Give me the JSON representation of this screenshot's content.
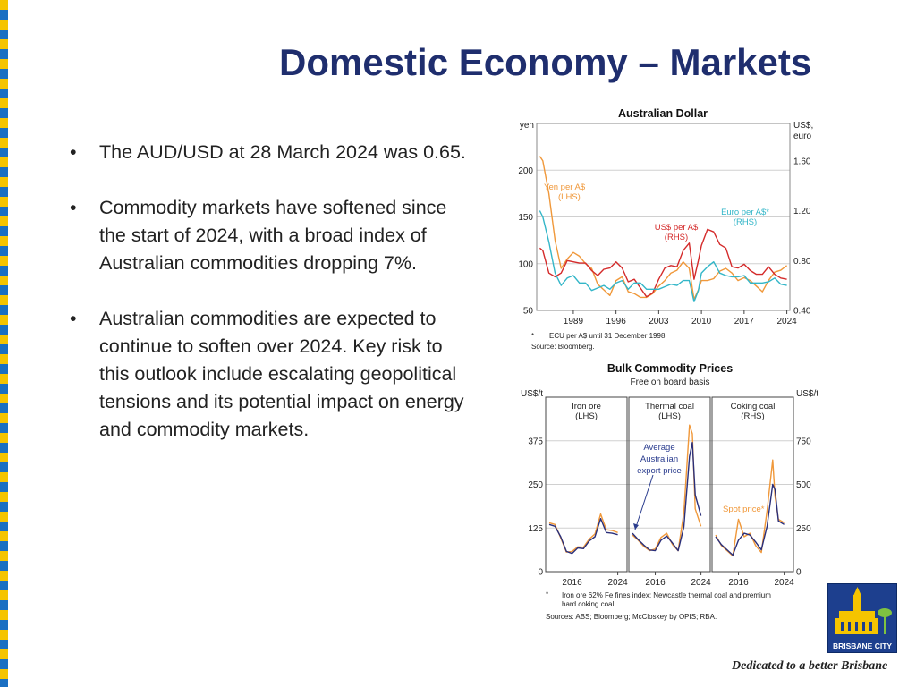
{
  "slide": {
    "title": "Domestic Economy – Markets",
    "bullets": [
      "The AUD/USD at 28 March 2024 was 0.65.",
      "Commodity markets have softened since the start of 2024, with a broad index of Australian commodities dropping 7%.",
      "Australian commodities are expected to continue to soften over 2024. Key risk to this outlook include escalating geopolitical tensions and its potential impact on energy and commodity markets."
    ],
    "bullet_symbol": "•",
    "tagline": "Dedicated to a better Brisbane",
    "logo": {
      "text": "BRISBANE CITY",
      "icon": "brisbane-city-hall-logo",
      "color": "#1d3f8e"
    },
    "edge_colors": [
      "#f5c400",
      "#1a6fc2"
    ],
    "title_color": "#1f2e6e"
  },
  "chart_data": [
    {
      "type": "line",
      "title": "Australian Dollar",
      "left_unit": "yen",
      "right_unit_lines": [
        "US$,",
        "euro"
      ],
      "x_ticks": [
        "1989",
        "1996",
        "2003",
        "2010",
        "2017",
        "2024"
      ],
      "xlim": [
        1983,
        2024.5
      ],
      "left_ticks": [
        "50",
        "100",
        "150",
        "200"
      ],
      "left_ylim": [
        50,
        250
      ],
      "right_ticks": [
        "0.40",
        "0.80",
        "1.20",
        "1.60"
      ],
      "right_ylim": [
        0.4,
        1.9
      ],
      "grid": true,
      "series": [
        {
          "name": "Yen per A$",
          "axis": "left",
          "color": "#f0983a",
          "labels": [
            "Yen per A$",
            "(LHS)"
          ],
          "x": [
            1983.5,
            1984,
            1985,
            1986,
            1987,
            1988,
            1989,
            1990,
            1991,
            1992,
            1993,
            1994,
            1995,
            1996,
            1997,
            1998,
            1999,
            2000,
            2001,
            2002,
            2003,
            2004,
            2005,
            2006,
            2007,
            2008,
            2008.8,
            2009.5,
            2010,
            2011,
            2012,
            2013,
            2014,
            2015,
            2016,
            2017,
            2018,
            2019,
            2020,
            2021,
            2022,
            2023,
            2024
          ],
          "values": [
            215,
            210,
            175,
            125,
            95,
            105,
            112,
            108,
            100,
            95,
            78,
            72,
            66,
            82,
            86,
            70,
            68,
            64,
            64,
            68,
            76,
            82,
            90,
            93,
            102,
            95,
            62,
            72,
            82,
            82,
            84,
            92,
            95,
            90,
            82,
            85,
            82,
            76,
            70,
            82,
            91,
            93,
            98
          ]
        },
        {
          "name": "US$ per A$",
          "axis": "right",
          "color": "#d42a2a",
          "labels": [
            "US$ per A$",
            "(RHS)"
          ],
          "x": [
            1983.5,
            1984,
            1985,
            1986,
            1987,
            1988,
            1989,
            1990,
            1991,
            1992,
            1993,
            1994,
            1995,
            1996,
            1997,
            1998,
            1999,
            2000,
            2001,
            2002,
            2003,
            2004,
            2005,
            2006,
            2007,
            2008,
            2008.8,
            2009.5,
            2010,
            2011,
            2012,
            2013,
            2014,
            2015,
            2016,
            2017,
            2018,
            2019,
            2020,
            2021,
            2022,
            2023,
            2024
          ],
          "values": [
            0.9,
            0.88,
            0.7,
            0.67,
            0.7,
            0.8,
            0.79,
            0.78,
            0.78,
            0.72,
            0.68,
            0.73,
            0.74,
            0.79,
            0.74,
            0.63,
            0.65,
            0.58,
            0.51,
            0.54,
            0.65,
            0.74,
            0.76,
            0.75,
            0.88,
            0.94,
            0.65,
            0.8,
            0.92,
            1.05,
            1.03,
            0.93,
            0.9,
            0.75,
            0.74,
            0.77,
            0.72,
            0.69,
            0.69,
            0.75,
            0.69,
            0.66,
            0.65
          ]
        },
        {
          "name": "Euro per A$*",
          "axis": "right",
          "color": "#33b6c8",
          "labels": [
            "Euro per A$*",
            "(RHS)"
          ],
          "x": [
            1983.5,
            1984,
            1985,
            1986,
            1987,
            1988,
            1989,
            1990,
            1991,
            1992,
            1993,
            1994,
            1995,
            1996,
            1997,
            1998,
            1999,
            2000,
            2001,
            2002,
            2003,
            2004,
            2005,
            2006,
            2007,
            2008,
            2008.8,
            2009.5,
            2010,
            2011,
            2012,
            2013,
            2014,
            2015,
            2016,
            2017,
            2018,
            2019,
            2020,
            2021,
            2022,
            2023,
            2024
          ],
          "values": [
            1.2,
            1.15,
            0.95,
            0.7,
            0.6,
            0.66,
            0.68,
            0.62,
            0.62,
            0.56,
            0.58,
            0.6,
            0.57,
            0.62,
            0.64,
            0.57,
            0.62,
            0.62,
            0.57,
            0.57,
            0.57,
            0.59,
            0.61,
            0.6,
            0.64,
            0.64,
            0.47,
            0.56,
            0.7,
            0.75,
            0.79,
            0.7,
            0.68,
            0.67,
            0.67,
            0.68,
            0.62,
            0.62,
            0.62,
            0.63,
            0.66,
            0.61,
            0.6
          ]
        }
      ],
      "footnote_mark": "*",
      "footnote": "ECU per A$ until 31 December 1998.",
      "source": "Source:   Bloomberg."
    },
    {
      "type": "line",
      "title": "Bulk Commodity Prices",
      "subtitle": "Free on board basis",
      "left_unit": "US$/t",
      "right_unit": "US$/t",
      "left_ticks": [
        "0",
        "125",
        "250",
        "375"
      ],
      "left_ylim": [
        0,
        500
      ],
      "right_ticks": [
        "0",
        "250",
        "500",
        "750"
      ],
      "right_ylim": [
        0,
        1000
      ],
      "grid": true,
      "panels": [
        {
          "title_lines": [
            "Iron ore",
            "(LHS)"
          ],
          "x_ticks": [
            "2016",
            "2024"
          ],
          "xlim": [
            2012,
            2025
          ],
          "axis": "left",
          "x": [
            2012,
            2013,
            2014,
            2015,
            2016,
            2017,
            2018,
            2019,
            2020,
            2021,
            2022,
            2023,
            2024
          ],
          "spot": [
            140,
            135,
            97,
            56,
            58,
            71,
            70,
            93,
            108,
            165,
            120,
            118,
            112
          ],
          "average": [
            135,
            130,
            100,
            58,
            52,
            68,
            66,
            88,
            100,
            152,
            112,
            110,
            106
          ]
        },
        {
          "title_lines": [
            "Thermal coal",
            "(LHS)"
          ],
          "x_ticks": [
            "2016",
            "2024"
          ],
          "xlim": [
            2012,
            2025
          ],
          "axis": "left",
          "x": [
            2012,
            2013,
            2014,
            2015,
            2016,
            2017,
            2018,
            2019,
            2020,
            2021,
            2022,
            2022.5,
            2023,
            2024
          ],
          "spot": [
            105,
            90,
            72,
            60,
            65,
            98,
            110,
            78,
            60,
            170,
            420,
            395,
            180,
            130
          ],
          "average": [
            110,
            92,
            76,
            62,
            60,
            90,
            102,
            82,
            60,
            128,
            330,
            370,
            220,
            160
          ]
        },
        {
          "title_lines": [
            "Coking coal",
            "(RHS)"
          ],
          "x_ticks": [
            "2016",
            "2024"
          ],
          "xlim": [
            2012,
            2025
          ],
          "axis": "right",
          "x": [
            2012,
            2013,
            2014,
            2015,
            2016,
            2017,
            2018,
            2019,
            2020,
            2021,
            2022,
            2022.4,
            2023,
            2024
          ],
          "spot": [
            210,
            150,
            120,
            90,
            300,
            200,
            220,
            150,
            110,
            350,
            640,
            430,
            300,
            280
          ],
          "average": [
            200,
            155,
            125,
            95,
            180,
            220,
            210,
            170,
            125,
            260,
            500,
            470,
            290,
            270
          ]
        }
      ],
      "annotations": [
        {
          "lines": [
            "Average",
            "Australian",
            "export price"
          ],
          "color": "#2a3c8e"
        },
        {
          "lines": [
            "Spot price*"
          ],
          "color": "#f0983a"
        }
      ],
      "series": [
        {
          "name": "Spot price*",
          "color": "#f0983a"
        },
        {
          "name": "Average Australian export price",
          "color": "#2a2f7a"
        }
      ],
      "footnote_mark": "*",
      "footnote": [
        "Iron ore 62% Fe fines index; Newcastle thermal coal and premium",
        "hard coking coal."
      ],
      "source": "Sources: ABS; Bloomberg; McCloskey by OPIS; RBA."
    }
  ]
}
